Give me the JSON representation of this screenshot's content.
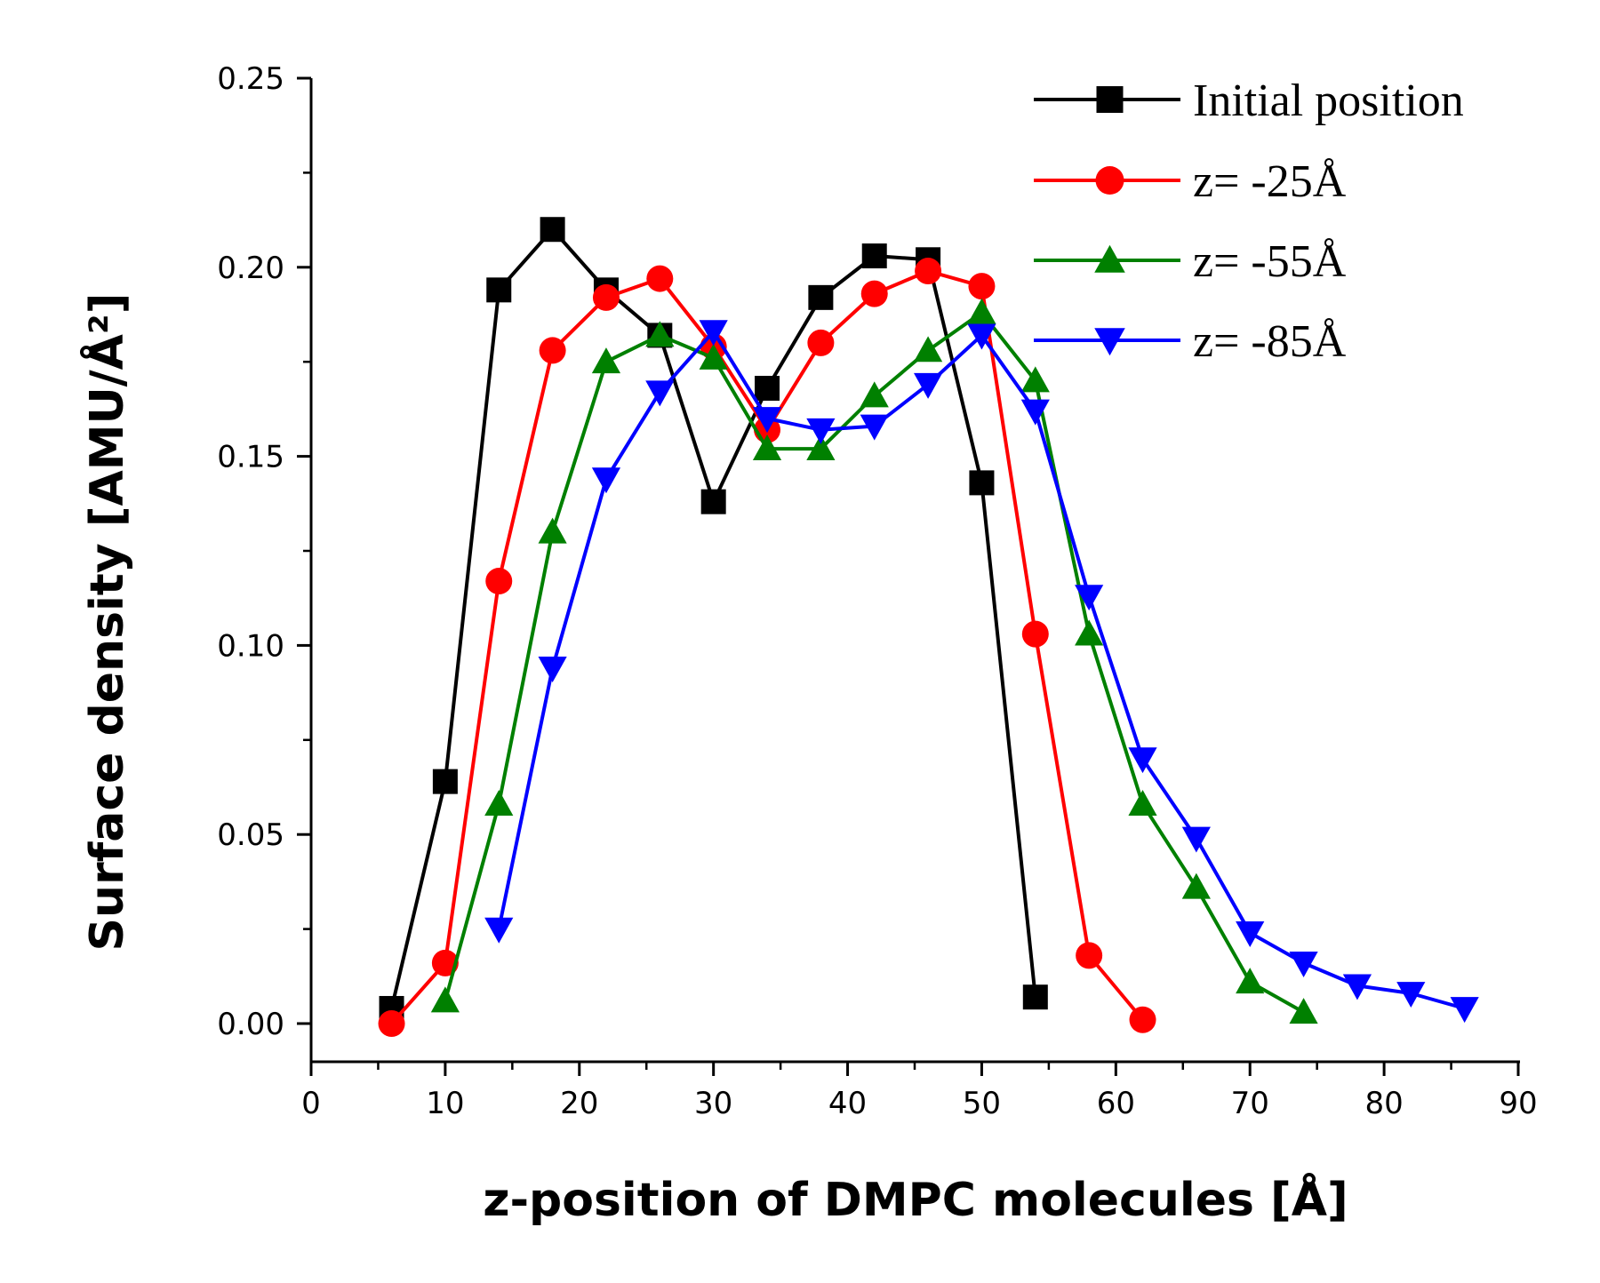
{
  "chart_data": {
    "type": "line",
    "xlabel": "z-position of DMPC molecules [Å]",
    "ylabel": "Surface density [AMU/Å²]",
    "xlim": [
      0,
      90
    ],
    "ylim": [
      0,
      0.25
    ],
    "xticks": [
      "0",
      "10",
      "20",
      "30",
      "40",
      "50",
      "60",
      "70",
      "80",
      "90"
    ],
    "yticks": [
      "0.00",
      "0.05",
      "0.10",
      "0.15",
      "0.20",
      "0.25"
    ],
    "grid": false,
    "legend_position": "top-right",
    "series": [
      {
        "name": "Initial position",
        "color": "#000000",
        "marker": "square",
        "x": [
          6,
          10,
          14,
          18,
          22,
          26,
          30,
          34,
          38,
          42,
          46,
          50,
          54
        ],
        "y": [
          0.004,
          0.064,
          0.194,
          0.21,
          0.194,
          0.182,
          0.138,
          0.168,
          0.192,
          0.203,
          0.202,
          0.143,
          0.007
        ]
      },
      {
        "name": "z= -25Å",
        "color": "#ff0000",
        "marker": "circle",
        "x": [
          6,
          10,
          14,
          18,
          22,
          26,
          30,
          34,
          38,
          42,
          46,
          50,
          54,
          58,
          62
        ],
        "y": [
          0.0,
          0.016,
          0.117,
          0.178,
          0.192,
          0.197,
          0.179,
          0.157,
          0.18,
          0.193,
          0.199,
          0.195,
          0.103,
          0.018,
          0.001
        ]
      },
      {
        "name": "z= -55Å",
        "color": "#008000",
        "marker": "triangle-up",
        "x": [
          10,
          14,
          18,
          22,
          26,
          30,
          34,
          38,
          42,
          46,
          50,
          54,
          58,
          62,
          66,
          70,
          74
        ],
        "y": [
          0.006,
          0.058,
          0.13,
          0.175,
          0.182,
          0.176,
          0.152,
          0.152,
          0.166,
          0.178,
          0.188,
          0.17,
          0.103,
          0.058,
          0.036,
          0.011,
          0.003
        ]
      },
      {
        "name": "z= -85Å",
        "color": "#0000ff",
        "marker": "triangle-down",
        "x": [
          14,
          18,
          22,
          26,
          30,
          34,
          38,
          42,
          46,
          50,
          54,
          58,
          62,
          66,
          70,
          74,
          78,
          82,
          86
        ],
        "y": [
          0.025,
          0.094,
          0.144,
          0.167,
          0.183,
          0.16,
          0.157,
          0.158,
          0.169,
          0.182,
          0.162,
          0.113,
          0.07,
          0.049,
          0.024,
          0.016,
          0.01,
          0.008,
          0.004
        ]
      }
    ]
  }
}
